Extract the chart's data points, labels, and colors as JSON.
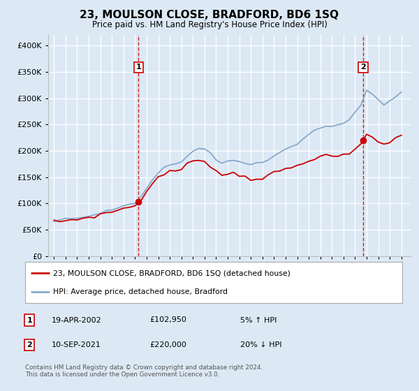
{
  "title": "23, MOULSON CLOSE, BRADFORD, BD6 1SQ",
  "subtitle": "Price paid vs. HM Land Registry's House Price Index (HPI)",
  "background_color": "#dce9f5",
  "legend_label_red": "23, MOULSON CLOSE, BRADFORD, BD6 1SQ (detached house)",
  "legend_label_blue": "HPI: Average price, detached house, Bradford",
  "annotation1_date": "19-APR-2002",
  "annotation1_price": "£102,950",
  "annotation1_hpi": "5% ↑ HPI",
  "annotation2_date": "10-SEP-2021",
  "annotation2_price": "£220,000",
  "annotation2_hpi": "20% ↓ HPI",
  "footer": "Contains HM Land Registry data © Crown copyright and database right 2024.\nThis data is licensed under the Open Government Licence v3.0.",
  "ylim_min": 0,
  "ylim_max": 420000,
  "yticks": [
    0,
    50000,
    100000,
    150000,
    200000,
    250000,
    300000,
    350000,
    400000
  ],
  "ytick_labels": [
    "£0",
    "£50K",
    "£100K",
    "£150K",
    "£200K",
    "£250K",
    "£300K",
    "£350K",
    "£400K"
  ],
  "sale1_x": 2002.3,
  "sale1_y": 102950,
  "sale2_x": 2021.7,
  "sale2_y": 220000,
  "red_color": "#cc0000",
  "blue_color": "#88aacc",
  "xlim_min": 1994.5,
  "xlim_max": 2025.8
}
